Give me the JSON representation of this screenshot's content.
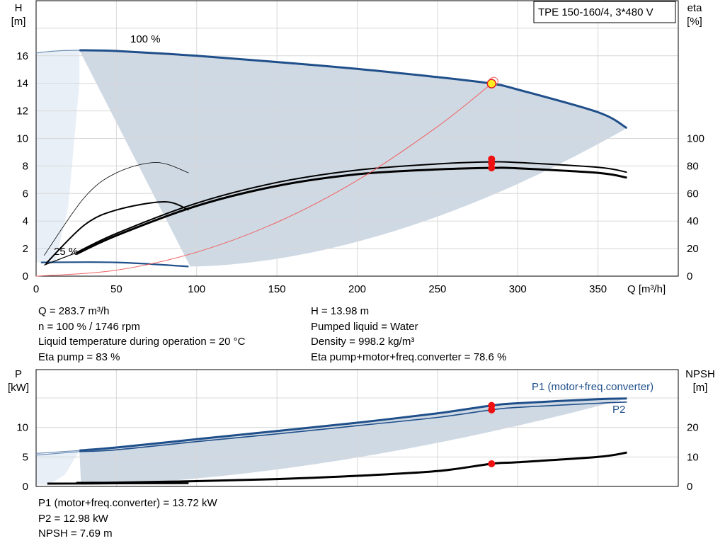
{
  "chart_data": [
    {
      "type": "line",
      "title": "TPE 150-160/4, 3*480 V",
      "xlabel": "Q [m³/h]",
      "ylabel_left": [
        "H",
        "[m]"
      ],
      "ylabel_right": [
        "eta",
        "[%]"
      ],
      "x_ticks": [
        "0",
        "50",
        "100",
        "150",
        "200",
        "250",
        "300",
        "350"
      ],
      "y_ticks_left": [
        "0",
        "2",
        "4",
        "6",
        "8",
        "10",
        "12",
        "14",
        "16"
      ],
      "y_ticks_right": [
        "0",
        "20",
        "40",
        "60",
        "80",
        "100"
      ],
      "xlim": [
        0,
        400
      ],
      "ylim_left": [
        0,
        20
      ],
      "ylim_right": [
        0,
        200
      ],
      "grid": true,
      "curve_labels": [
        "100 %",
        "25 %"
      ],
      "series": [
        {
          "role": "head-max",
          "x": [
            27,
            50,
            100,
            150,
            200,
            250,
            283.7,
            300,
            350,
            368
          ],
          "y": [
            16.4,
            16.35,
            16.0,
            15.55,
            15.05,
            14.45,
            13.98,
            13.55,
            11.9,
            10.75
          ]
        },
        {
          "role": "head-min",
          "x": [
            3,
            50,
            95
          ],
          "y": [
            1.0,
            1.0,
            0.7
          ]
        },
        {
          "role": "eta-pump",
          "x": [
            25,
            50,
            100,
            150,
            200,
            250,
            283.7,
            300,
            350,
            368
          ],
          "y": [
            17,
            31,
            53,
            68,
            77,
            81.5,
            83,
            82.5,
            79,
            75.5
          ]
        },
        {
          "role": "eta-total",
          "x": [
            25,
            50,
            100,
            150,
            200,
            250,
            283.7,
            300,
            350,
            368
          ],
          "y": [
            16,
            29.5,
            51,
            65.5,
            74,
            77.5,
            78.6,
            78.3,
            75,
            71.5
          ]
        },
        {
          "role": "eta-pump-reduced",
          "x": [
            5,
            30,
            50,
            75,
            95
          ],
          "y": [
            15,
            57,
            75,
            82.5,
            75
          ]
        },
        {
          "role": "eta-total-reduced",
          "x": [
            6,
            30,
            50,
            80,
            95
          ],
          "y": [
            9,
            37,
            48,
            54,
            48
          ]
        },
        {
          "role": "system-curve",
          "x": [
            0,
            50,
            100,
            150,
            200,
            250,
            283.7
          ],
          "y": [
            0.0,
            0.43,
            1.74,
            3.91,
            6.95,
            10.86,
            13.98
          ]
        }
      ],
      "operating_point": {
        "Q": 283.7,
        "H": 13.98,
        "eta_pump": 83,
        "eta_total": 78.6
      },
      "envelope_x_range": [
        0,
        368
      ]
    },
    {
      "type": "line",
      "ylabel_left": [
        "P",
        "[kW]"
      ],
      "ylabel_right": [
        "NPSH",
        "[m]"
      ],
      "y_ticks_left": [
        "0",
        "5",
        "10"
      ],
      "y_ticks_right": [
        "0",
        "10",
        "20"
      ],
      "ylim_left": [
        0,
        15
      ],
      "ylim_right": [
        0,
        30
      ],
      "grid": true,
      "series": [
        {
          "name": "P1 (motor+freq.converter)",
          "x": [
            0,
            27,
            50,
            100,
            150,
            200,
            250,
            283.7,
            300,
            350,
            368
          ],
          "y": [
            5.6,
            6.1,
            6.6,
            8.0,
            9.4,
            10.8,
            12.4,
            13.72,
            14.1,
            14.8,
            14.9
          ]
        },
        {
          "name": "P2",
          "x": [
            0,
            27,
            50,
            100,
            150,
            200,
            250,
            283.7,
            300,
            350,
            368
          ],
          "y": [
            5.3,
            5.9,
            6.2,
            7.6,
            8.9,
            10.3,
            11.7,
            12.98,
            13.4,
            14.1,
            14.3
          ]
        },
        {
          "role": "npsh",
          "x": [
            25,
            50,
            100,
            150,
            200,
            250,
            283.7,
            300,
            350,
            368
          ],
          "y": [
            1.2,
            1.3,
            1.8,
            2.5,
            3.6,
            5.2,
            7.69,
            8.2,
            10.0,
            11.5
          ]
        },
        {
          "role": "power-min",
          "x": [
            7,
            50,
            95
          ],
          "y": [
            0.45,
            0.5,
            0.55
          ]
        }
      ],
      "operating_point": {
        "P1": 13.72,
        "P2": 12.98,
        "NPSH": 7.69
      }
    }
  ],
  "colors": {
    "curve_blue": "#1f4f8a",
    "envelope_fill": "#cfd9e4",
    "envelope_light": "#e8eff7",
    "marker_red": "#ee1111",
    "operating_yellow": "#ffee22",
    "system_curve": "#f06060",
    "grid": "#d8d8d8"
  },
  "info_left": [
    "Q = 283.7 m³/h",
    "n = 100 % / 1746 rpm",
    "Liquid temperature during operation = 20 °C",
    "Eta pump = 83 %"
  ],
  "info_right": [
    "H = 13.98 m",
    "Pumped liquid = Water",
    "Density = 998.2 kg/m³",
    "Eta pump+motor+freq.converter = 78.6 %"
  ],
  "info_bottom": [
    "P1 (motor+freq.converter) = 13.72 kW",
    "P2 = 12.98 kW",
    "NPSH = 7.69 m"
  ]
}
